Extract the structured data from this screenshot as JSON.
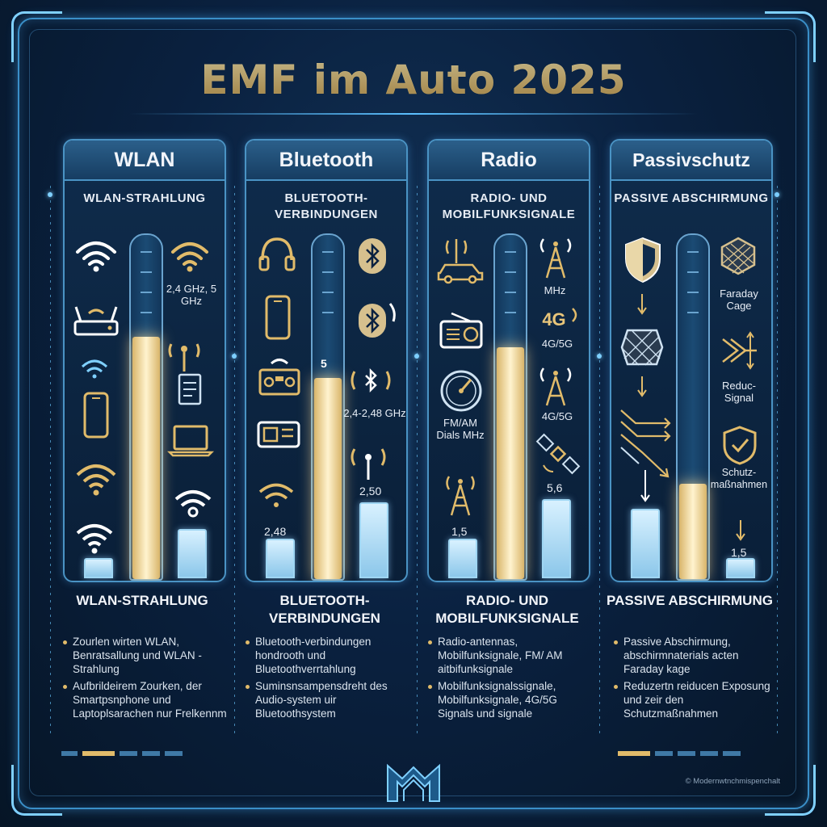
{
  "title": "EMF im Auto 2025",
  "columns": [
    {
      "header": "WLAN",
      "subtitle": "WLAN-STRAHLUNG",
      "labels": {
        "freq": "2,4 GHz, 5 GHz"
      },
      "summary_title": "WLAN-STRAHLUNG",
      "bullets": [
        "Zourlen wirten WLAN, Benratsallung und WLAN - Strahlung",
        "Aufbrildeirem Zourken, der Smartpsnphone und Laptoplsarachen nur Frelkennm"
      ]
    },
    {
      "header": "Bluetooth",
      "subtitle": "BLUETOOTH-VERBINDUNGEN",
      "labels": {
        "level": "5",
        "freq": "2,4-2,48 GHz",
        "v1": "2,48",
        "v2": "2,50"
      },
      "summary_title": "BLUETOOTH-VERBINDUNGEN",
      "bullets": [
        "Bluetooth-verbindungen hondrooth und Bluetoothverrtahlung",
        "Suminsnsampensdreht des Audio-system uir Bluetoothsystem"
      ]
    },
    {
      "header": "Radio",
      "subtitle": "RADIO- UND MOBILFUNKSIGNALE",
      "labels": {
        "mhz": "MHz",
        "g4": "4G",
        "g45a": "4G/5G",
        "fmam": "FM/AM Dials MHz",
        "g45b": "4G/5G",
        "v1": "1,5",
        "v2": "5,6"
      },
      "summary_title": "RADIO- UND MOBILFUNKSIGNALE",
      "bullets": [
        "Radio-antennas, Mobilfunksignale, FM/ AM aitbifunksignale",
        "Mobilfunksignalssignale, Mobilfunksignale, 4G/5G Signals und signale"
      ]
    },
    {
      "header": "Passivschutz",
      "subtitle": "PASSIVE ABSCHIRMUNG",
      "labels": {
        "faraday": "Faraday Cage",
        "reduc": "Reduc-Signal",
        "schutz": "Schutz-maßnahmen",
        "v1": "1,5"
      },
      "summary_title": "PASSIVE ABSCHIRMUNG",
      "bullets": [
        "Passive Abschirmung, abschirmnaterials acten Faraday kage",
        "Reduzertn reiducen Exposung und zeir den Schutzmaßnahmen"
      ]
    }
  ],
  "meters": {
    "wlan": 0.71,
    "bluetooth": 0.59,
    "radio": 0.68,
    "passiv": 0.28
  },
  "bars": {
    "wlan": [
      0.05,
      0.14
    ],
    "bluetooth": [
      0.11,
      0.22
    ],
    "radio": [
      0.11,
      0.23
    ],
    "passiv": [
      0.2,
      0.05
    ]
  },
  "credit": "© Modernwtnchmispenchalt",
  "colors": {
    "accent_gold": "#e1bb6a",
    "frame_blue": "#4a93c4",
    "glow": "#7fd0ff"
  }
}
